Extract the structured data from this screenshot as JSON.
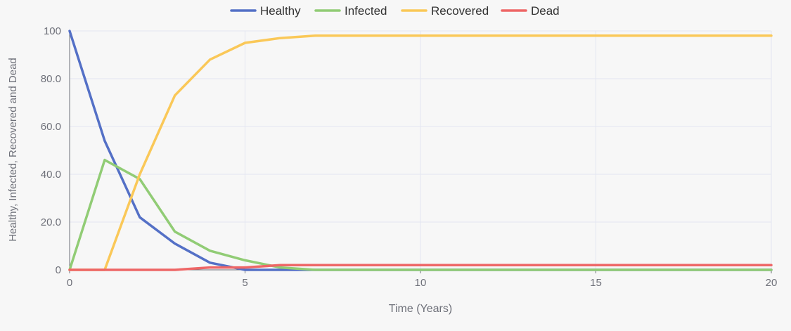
{
  "chart_data": {
    "type": "line",
    "title": "",
    "xlabel": "Time (Years)",
    "ylabel": "Healthy, Infected, Recovered and Dead",
    "xlim": [
      0,
      20
    ],
    "ylim": [
      0,
      100
    ],
    "x_ticks": [
      0,
      5,
      10,
      15,
      20
    ],
    "x_tick_labels": [
      "0",
      "5",
      "10",
      "15",
      "20"
    ],
    "y_ticks": [
      0,
      20,
      40,
      60,
      80,
      100
    ],
    "y_tick_labels": [
      "0",
      "20.0",
      "40.0",
      "60.0",
      "80.0",
      "100"
    ],
    "grid": true,
    "legend_position": "top-center",
    "x": [
      0,
      1,
      2,
      3,
      4,
      5,
      6,
      7,
      8,
      9,
      10,
      11,
      12,
      13,
      14,
      15,
      16,
      17,
      18,
      19,
      20
    ],
    "series": [
      {
        "name": "Healthy",
        "color": "#5470c6",
        "values": [
          100,
          54,
          22,
          11,
          3,
          0,
          0,
          0,
          0,
          0,
          0,
          0,
          0,
          0,
          0,
          0,
          0,
          0,
          0,
          0,
          0
        ]
      },
      {
        "name": "Infected",
        "color": "#91cc75",
        "values": [
          0,
          46,
          38,
          16,
          8,
          4,
          1,
          0,
          0,
          0,
          0,
          0,
          0,
          0,
          0,
          0,
          0,
          0,
          0,
          0,
          0
        ]
      },
      {
        "name": "Recovered",
        "color": "#fac858",
        "values": [
          0,
          0,
          40,
          73,
          88,
          95,
          97,
          98,
          98,
          98,
          98,
          98,
          98,
          98,
          98,
          98,
          98,
          98,
          98,
          98,
          98
        ]
      },
      {
        "name": "Dead",
        "color": "#ee6666",
        "values": [
          0,
          0,
          0,
          0,
          1,
          1,
          2,
          2,
          2,
          2,
          2,
          2,
          2,
          2,
          2,
          2,
          2,
          2,
          2,
          2,
          2
        ]
      }
    ]
  }
}
